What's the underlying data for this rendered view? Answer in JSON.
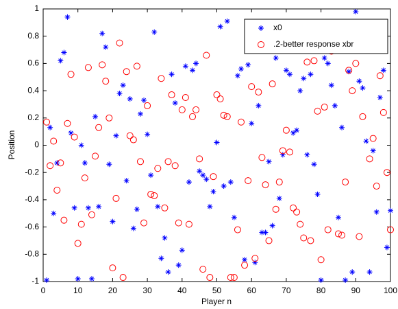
{
  "chart_data": {
    "type": "scatter",
    "x_label": "Player n",
    "y_label": "Position",
    "xlim": [
      0,
      100
    ],
    "ylim": [
      -1,
      1
    ],
    "xticks": [
      0,
      10,
      20,
      30,
      40,
      50,
      60,
      70,
      80,
      90,
      100
    ],
    "yticks": [
      -1,
      -0.8,
      -0.6,
      -0.4,
      -0.2,
      0,
      0.2,
      0.4,
      0.6,
      0.8,
      1
    ],
    "legend": "top-right",
    "x": [
      1,
      2,
      3,
      4,
      5,
      6,
      7,
      8,
      9,
      10,
      11,
      12,
      13,
      14,
      15,
      16,
      17,
      18,
      19,
      20,
      21,
      22,
      23,
      24,
      25,
      26,
      27,
      28,
      29,
      30,
      31,
      32,
      33,
      34,
      35,
      36,
      37,
      38,
      39,
      40,
      41,
      42,
      43,
      44,
      45,
      46,
      47,
      48,
      49,
      50,
      51,
      52,
      53,
      54,
      55,
      56,
      57,
      58,
      59,
      60,
      61,
      62,
      63,
      64,
      65,
      66,
      67,
      68,
      69,
      70,
      71,
      72,
      73,
      74,
      75,
      76,
      77,
      78,
      79,
      80,
      81,
      82,
      83,
      84,
      85,
      86,
      87,
      88,
      89,
      90,
      91,
      92,
      93,
      94,
      95,
      96,
      97,
      98,
      99,
      100
    ],
    "series": [
      {
        "name": "x0",
        "color": "#0000ff",
        "marker": "asterisk",
        "values": [
          -0.99,
          0.13,
          -0.5,
          -0.13,
          0.62,
          0.68,
          0.94,
          0.09,
          -0.46,
          -0.98,
          0.0,
          -0.13,
          -0.46,
          -0.98,
          0.21,
          -0.45,
          0.82,
          0.72,
          -0.14,
          -0.56,
          0.07,
          0.38,
          0.44,
          -0.26,
          0.34,
          -0.61,
          -0.47,
          0.23,
          0.33,
          0.08,
          -0.22,
          0.83,
          -0.45,
          -0.83,
          -0.68,
          -0.93,
          0.52,
          0.31,
          -0.88,
          -0.77,
          0.58,
          -0.27,
          0.55,
          0.6,
          -0.19,
          -0.22,
          -0.25,
          -0.45,
          -0.34,
          0.02,
          0.87,
          -0.3,
          0.91,
          -0.27,
          -0.53,
          0.51,
          0.56,
          -0.84,
          0.59,
          0.16,
          -0.86,
          0.29,
          -0.64,
          -0.64,
          -0.12,
          -0.59,
          0.64,
          -0.39,
          -0.07,
          0.55,
          0.52,
          0.09,
          0.11,
          0.4,
          0.49,
          -0.07,
          0.52,
          -0.14,
          -0.36,
          -0.99,
          0.64,
          0.6,
          0.44,
          0.29,
          -0.53,
          0.13,
          -0.99,
          0.54,
          -0.93,
          0.98,
          0.47,
          0.42,
          0.03,
          -0.93,
          -0.04,
          -0.49,
          0.35,
          0.55,
          -0.75,
          -0.48
        ]
      },
      {
        "name": ".2-better response xbr",
        "color": "#ff0000",
        "marker": "circle",
        "values": [
          0.17,
          -0.15,
          0.03,
          -0.33,
          -0.13,
          -0.55,
          0.16,
          0.52,
          0.06,
          -0.72,
          -0.58,
          -0.24,
          0.57,
          -0.51,
          -0.08,
          0.13,
          0.59,
          0.47,
          0.2,
          -0.9,
          -0.39,
          0.75,
          -0.97,
          0.54,
          0.07,
          0.04,
          0.58,
          -0.12,
          -0.57,
          0.29,
          -0.36,
          -0.37,
          -0.17,
          0.49,
          -0.46,
          -0.12,
          0.37,
          -0.15,
          -0.57,
          0.26,
          0.35,
          -0.58,
          0.21,
          0.26,
          -0.1,
          -0.91,
          0.66,
          -0.97,
          -0.23,
          0.37,
          0.34,
          0.22,
          0.21,
          -0.97,
          -0.97,
          -0.62,
          0.17,
          -0.88,
          -0.26,
          0.43,
          -0.83,
          0.39,
          -0.09,
          -0.29,
          -0.7,
          0.45,
          -0.47,
          -0.27,
          -0.04,
          0.11,
          -0.05,
          -0.46,
          -0.49,
          -0.58,
          -0.68,
          0.61,
          -0.7,
          0.62,
          0.25,
          -0.84,
          0.28,
          -0.62,
          0.69,
          0.77,
          -0.65,
          -0.66,
          -0.27,
          0.55,
          0.4,
          0.6,
          -0.67,
          0.21,
          0.8,
          -0.1,
          0.05,
          -0.3,
          0.51,
          0.24,
          -0.2,
          -0.62
        ]
      }
    ]
  }
}
